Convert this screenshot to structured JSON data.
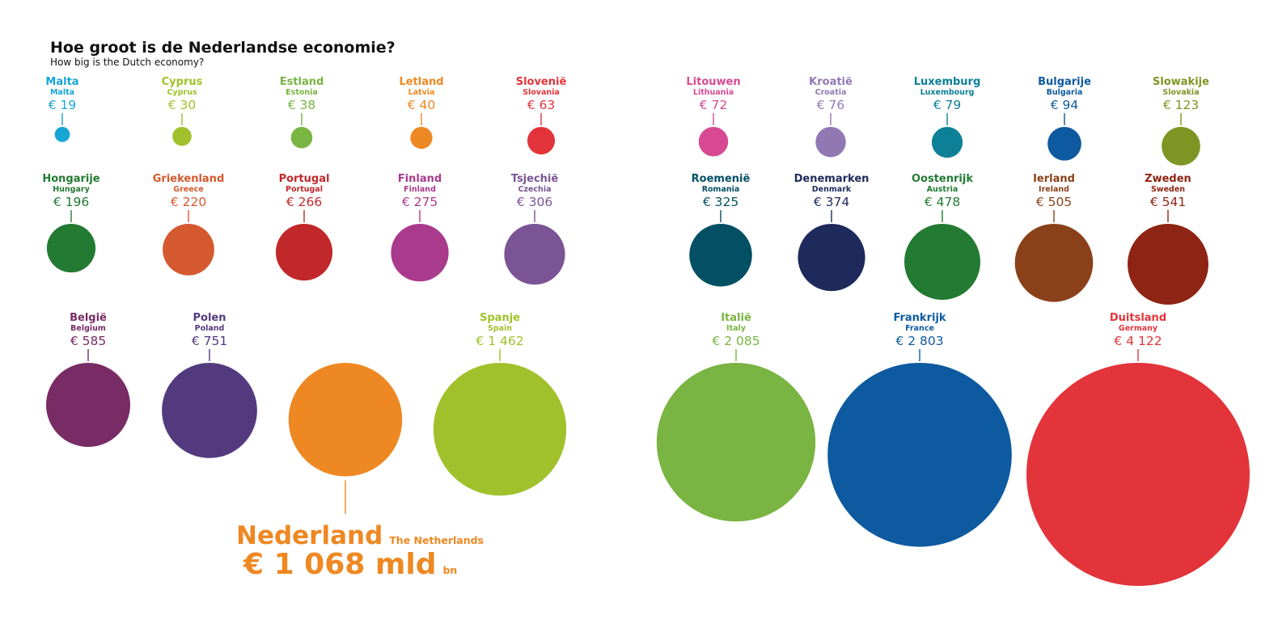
{
  "chart_data": {
    "type": "bubble",
    "title": "Hoe groot is de Nederlandse economie?",
    "subtitle": "How big is the Dutch economy?",
    "currency": "€",
    "unit": "mld",
    "unit_en": "bn",
    "countries": [
      {
        "name": "Malta",
        "name_en": "Malta",
        "value": 19,
        "value_label": "€ 19",
        "color": "#16A5D5"
      },
      {
        "name": "Cyprus",
        "name_en": "Cyprus",
        "value": 30,
        "value_label": "€ 30",
        "color": "#A0C12B"
      },
      {
        "name": "Estland",
        "name_en": "Estonia",
        "value": 38,
        "value_label": "€ 38",
        "color": "#7AB442"
      },
      {
        "name": "Letland",
        "name_en": "Latvia",
        "value": 40,
        "value_label": "€ 40",
        "color": "#EE8822"
      },
      {
        "name": "Slovenië",
        "name_en": "Slovania",
        "value": 63,
        "value_label": "€ 63",
        "color": "#E2343A"
      },
      {
        "name": "Litouwen",
        "name_en": "Lithuania",
        "value": 72,
        "value_label": "€ 72",
        "color": "#D74A93"
      },
      {
        "name": "Kroatië",
        "name_en": "Croatia",
        "value": 76,
        "value_label": "€ 76",
        "color": "#9178B3"
      },
      {
        "name": "Luxemburg",
        "name_en": "Luxembourg",
        "value": 79,
        "value_label": "€ 79",
        "color": "#0C8097"
      },
      {
        "name": "Bulgarije",
        "name_en": "Bulgaria",
        "value": 94,
        "value_label": "€ 94",
        "color": "#0E5AA0"
      },
      {
        "name": "Slowakije",
        "name_en": "Slovakia",
        "value": 123,
        "value_label": "€ 123",
        "color": "#7E9524"
      },
      {
        "name": "Hongarije",
        "name_en": "Hungary",
        "value": 196,
        "value_label": "€ 196",
        "color": "#237A33"
      },
      {
        "name": "Griekenland",
        "name_en": "Greece",
        "value": 220,
        "value_label": "€ 220",
        "color": "#D5592E"
      },
      {
        "name": "Portugal",
        "name_en": "Portugal",
        "value": 266,
        "value_label": "€ 266",
        "color": "#C1282A"
      },
      {
        "name": "Finland",
        "name_en": "Finland",
        "value": 275,
        "value_label": "€ 275",
        "color": "#AA3A8C"
      },
      {
        "name": "Tsjechië",
        "name_en": "Czechia",
        "value": 306,
        "value_label": "€ 306",
        "color": "#7A5494"
      },
      {
        "name": "Roemenië",
        "name_en": "Romania",
        "value": 325,
        "value_label": "€ 325",
        "color": "#034F63"
      },
      {
        "name": "Denemarken",
        "name_en": "Denmark",
        "value": 374,
        "value_label": "€ 374",
        "color": "#1D2A5B"
      },
      {
        "name": "Oostenrijk",
        "name_en": "Austria",
        "value": 478,
        "value_label": "€ 478",
        "color": "#237A33"
      },
      {
        "name": "Ierland",
        "name_en": "Ireland",
        "value": 505,
        "value_label": "€ 505",
        "color": "#8A411A"
      },
      {
        "name": "Zweden",
        "name_en": "Sweden",
        "value": 541,
        "value_label": "€ 541",
        "color": "#8E2413"
      },
      {
        "name": "België",
        "name_en": "Belgium",
        "value": 585,
        "value_label": "€ 585",
        "color": "#782B64"
      },
      {
        "name": "Polen",
        "name_en": "Poland",
        "value": 751,
        "value_label": "€ 751",
        "color": "#533A7E"
      },
      {
        "name": "Nederland",
        "name_en": "The Netherlands",
        "value": 1068,
        "value_label": "€ 1 068",
        "color": "#EE8822",
        "highlight": true
      },
      {
        "name": "Spanje",
        "name_en": "Spain",
        "value": 1462,
        "value_label": "€ 1 462",
        "color": "#A0C12B"
      },
      {
        "name": "Italië",
        "name_en": "Italy",
        "value": 2085,
        "value_label": "€ 2 085",
        "color": "#7AB442"
      },
      {
        "name": "Frankrijk",
        "name_en": "France",
        "value": 2803,
        "value_label": "€ 2 803",
        "color": "#0E5AA0"
      },
      {
        "name": "Duitsland",
        "name_en": "Germany",
        "value": 4122,
        "value_label": "€ 4 122",
        "color": "#E2343A"
      }
    ]
  }
}
